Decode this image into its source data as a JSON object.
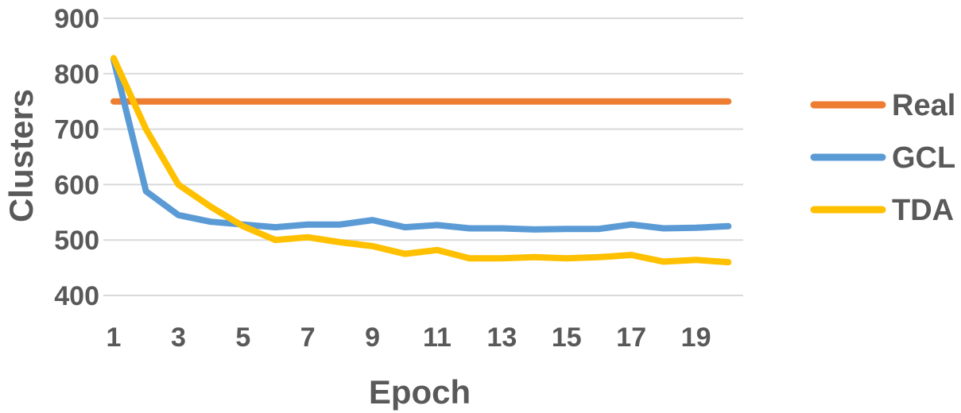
{
  "chart_data": {
    "type": "line",
    "xlabel": "Epoch",
    "ylabel": "Clusters",
    "x": [
      1,
      2,
      3,
      4,
      5,
      6,
      7,
      8,
      9,
      10,
      11,
      12,
      13,
      14,
      15,
      16,
      17,
      18,
      19,
      20
    ],
    "x_tick_labels": [
      "1",
      "3",
      "5",
      "7",
      "9",
      "11",
      "13",
      "15",
      "17",
      "19"
    ],
    "y_tick_labels": [
      "400",
      "500",
      "600",
      "700",
      "800",
      "900"
    ],
    "ylim": [
      380,
      900
    ],
    "grid": true,
    "legend_position": "right",
    "series": [
      {
        "name": "Real",
        "color": "#ED7D31",
        "values": [
          750,
          750,
          750,
          750,
          750,
          750,
          750,
          750,
          750,
          750,
          750,
          750,
          750,
          750,
          750,
          750,
          750,
          750,
          750,
          750
        ]
      },
      {
        "name": "GCL",
        "color": "#5B9BD5",
        "values": [
          825,
          588,
          545,
          533,
          528,
          523,
          528,
          528,
          536,
          523,
          527,
          521,
          521,
          519,
          520,
          520,
          528,
          521,
          522,
          525
        ]
      },
      {
        "name": "TDA",
        "color": "#FFC000",
        "values": [
          828,
          700,
          600,
          560,
          525,
          500,
          505,
          496,
          489,
          475,
          482,
          467,
          467,
          469,
          467,
          469,
          473,
          461,
          464,
          460
        ]
      }
    ]
  }
}
